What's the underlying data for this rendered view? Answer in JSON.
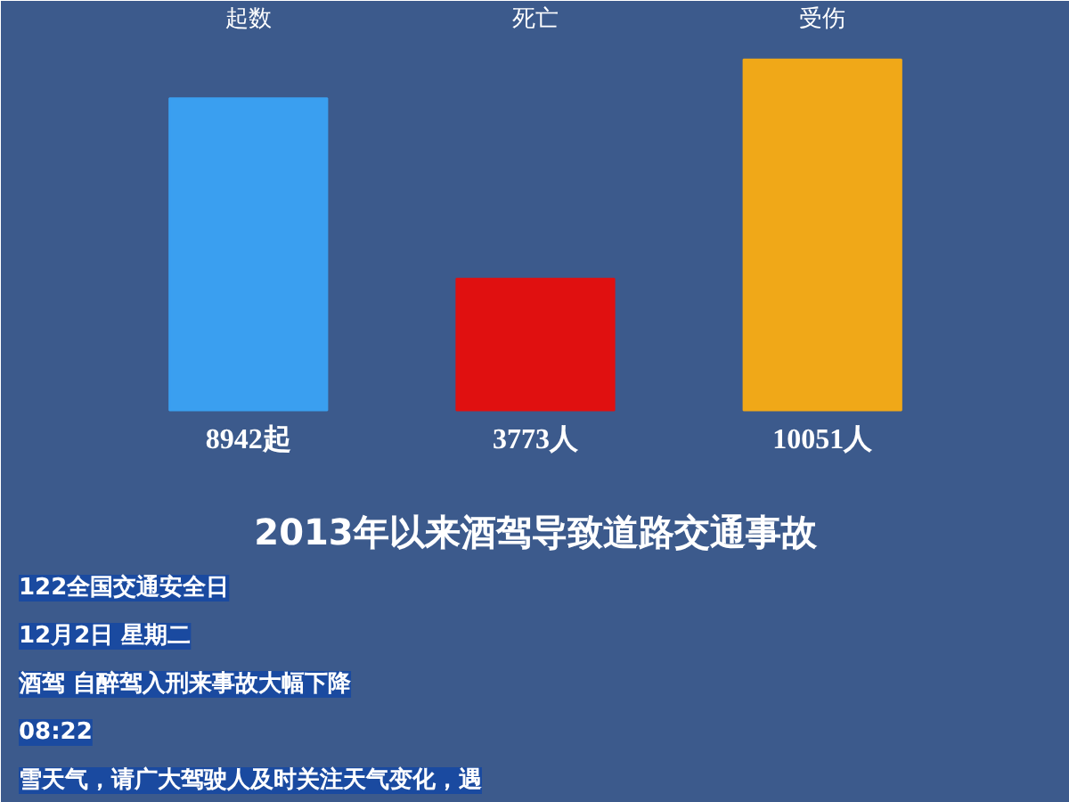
{
  "chart_data": {
    "type": "bar",
    "title": "2013年以来酒驾导致道路交通事故",
    "categories": [
      "起数",
      "死亡",
      "受伤"
    ],
    "values": [
      8942,
      3773,
      10051
    ],
    "colors": [
      "#3a9ff0",
      "#e01010",
      "#f0a818"
    ],
    "value_labels": [
      "8942起",
      "3773人",
      "10051人"
    ],
    "tick_labels": "x",
    "grid": false,
    "annotations": [
      "122全国交通安全日",
      "12月2日 星期二",
      "酒驾 自醉驾入刑来事故大幅下降",
      "08:22",
      "雪天气，请广大驾驶人及时关注天气变化，遇"
    ]
  }
}
